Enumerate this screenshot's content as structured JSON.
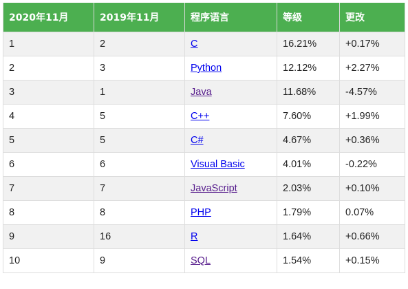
{
  "table": {
    "headers": [
      "2020年11月",
      "2019年11月",
      "程序语言",
      "等级",
      "更改"
    ],
    "rows": [
      {
        "rank_2020": "1",
        "rank_2019": "2",
        "language": "C",
        "visited": false,
        "rating": "16.21%",
        "change": "+0.17%"
      },
      {
        "rank_2020": "2",
        "rank_2019": "3",
        "language": "Python",
        "visited": false,
        "rating": "12.12%",
        "change": "+2.27%"
      },
      {
        "rank_2020": "3",
        "rank_2019": "1",
        "language": "Java",
        "visited": true,
        "rating": "11.68%",
        "change": "-4.57%"
      },
      {
        "rank_2020": "4",
        "rank_2019": "5",
        "language": "C++",
        "visited": false,
        "rating": "7.60%",
        "change": "+1.99%"
      },
      {
        "rank_2020": "5",
        "rank_2019": "5",
        "language": "C#",
        "visited": false,
        "rating": "4.67%",
        "change": "+0.36%"
      },
      {
        "rank_2020": "6",
        "rank_2019": "6",
        "language": "Visual Basic",
        "visited": false,
        "rating": "4.01%",
        "change": "-0.22%"
      },
      {
        "rank_2020": "7",
        "rank_2019": "7",
        "language": "JavaScript",
        "visited": true,
        "rating": "2.03%",
        "change": "+0.10%"
      },
      {
        "rank_2020": "8",
        "rank_2019": "8",
        "language": "PHP",
        "visited": false,
        "rating": "1.79%",
        "change": "0.07%"
      },
      {
        "rank_2020": "9",
        "rank_2019": "16",
        "language": "R",
        "visited": false,
        "rating": "1.64%",
        "change": "+0.66%"
      },
      {
        "rank_2020": "10",
        "rank_2019": "9",
        "language": "SQL",
        "visited": true,
        "rating": "1.54%",
        "change": "+0.15%"
      }
    ]
  },
  "colors": {
    "header_bg": "#4caf50",
    "header_text": "#ffffff",
    "row_odd_bg": "#f1f1f1",
    "row_even_bg": "#ffffff",
    "link": "#0000ee",
    "link_visited": "#551a8b"
  }
}
